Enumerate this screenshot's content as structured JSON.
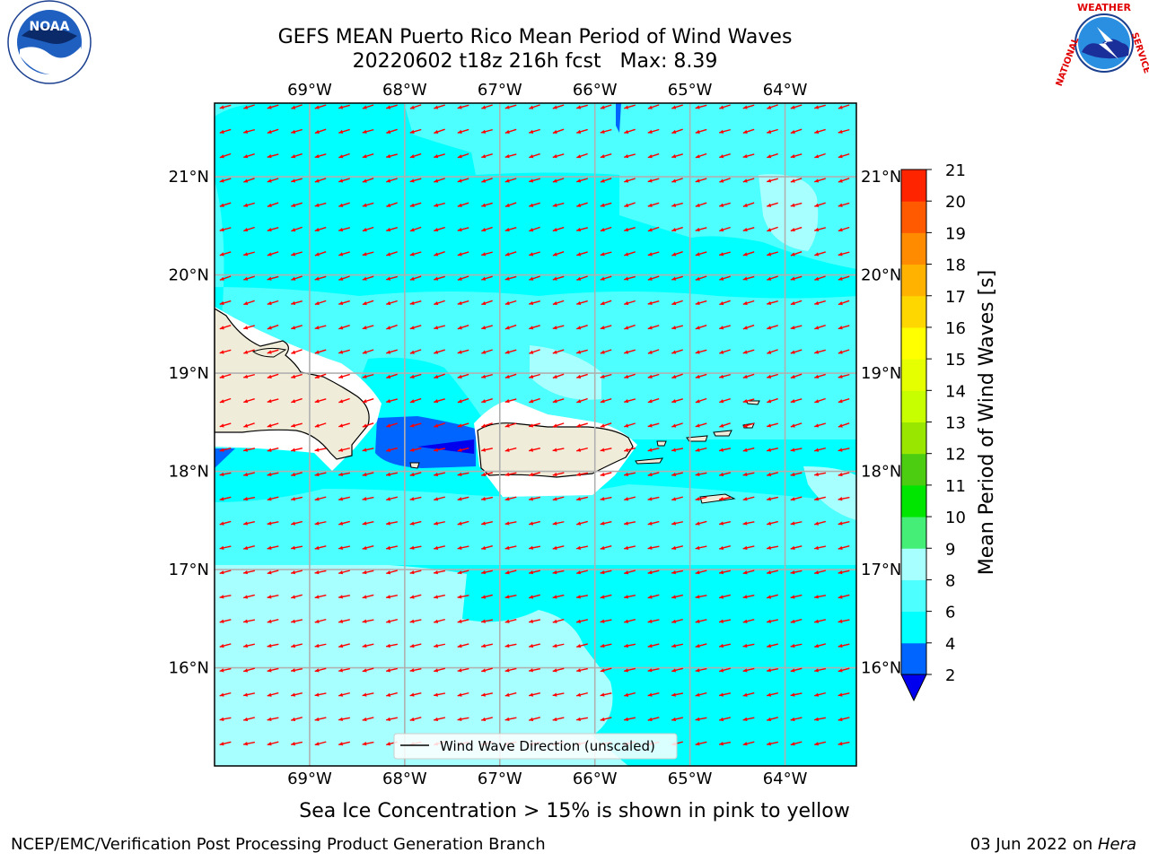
{
  "header": {
    "title_line1": "GEFS MEAN Puerto Rico Mean Period of Wind Waves",
    "title_line2": "20220602 t18z 216h fcst   Max: 8.39"
  },
  "logos": {
    "left": {
      "name": "NOAA",
      "ring_text": "NATIONAL OCEANIC AND ATMOSPHERIC ADMINISTRATION · U.S. DEPARTMENT OF COMMERCE"
    },
    "right": {
      "name": "NATIONAL WEATHER SERVICE"
    }
  },
  "map": {
    "lon_ticks": [
      "69°W",
      "68°W",
      "67°W",
      "66°W",
      "65°W",
      "64°W"
    ],
    "lat_ticks": [
      "21°N",
      "20°N",
      "19°N",
      "18°N",
      "17°N",
      "16°N"
    ],
    "lon_range": [
      -70.0,
      -63.25
    ],
    "lat_range": [
      15.0,
      21.75
    ],
    "ocean_color": "#00ffff",
    "land_color": "#efedda",
    "arrow_color": "#ff0000",
    "legend_label": "Wind Wave Direction (unscaled)"
  },
  "colorbar": {
    "label": "Mean Period of Wind Waves [s]",
    "ticks": [
      "2",
      "4",
      "6",
      "8",
      "9",
      "10",
      "11",
      "12",
      "13",
      "14",
      "15",
      "16",
      "17",
      "18",
      "19",
      "20",
      "21"
    ],
    "colors": [
      "#0064ff",
      "#00ffff",
      "#4dffff",
      "#a8ffff",
      "#44ee77",
      "#00e600",
      "#4ccd12",
      "#99e600",
      "#c8ff00",
      "#e6ff00",
      "#ffff00",
      "#ffd700",
      "#ffb300",
      "#ff8c00",
      "#ff5a00",
      "#ff2400"
    ],
    "under_color": "#0000ee"
  },
  "subtitle": "Sea Ice Concentration > 15% is shown in pink to yellow",
  "footer": {
    "left": "NCEP/EMC/Verification Post Processing Product Generation Branch",
    "right_date": "03 Jun 2022 on ",
    "right_host": "Hera"
  }
}
